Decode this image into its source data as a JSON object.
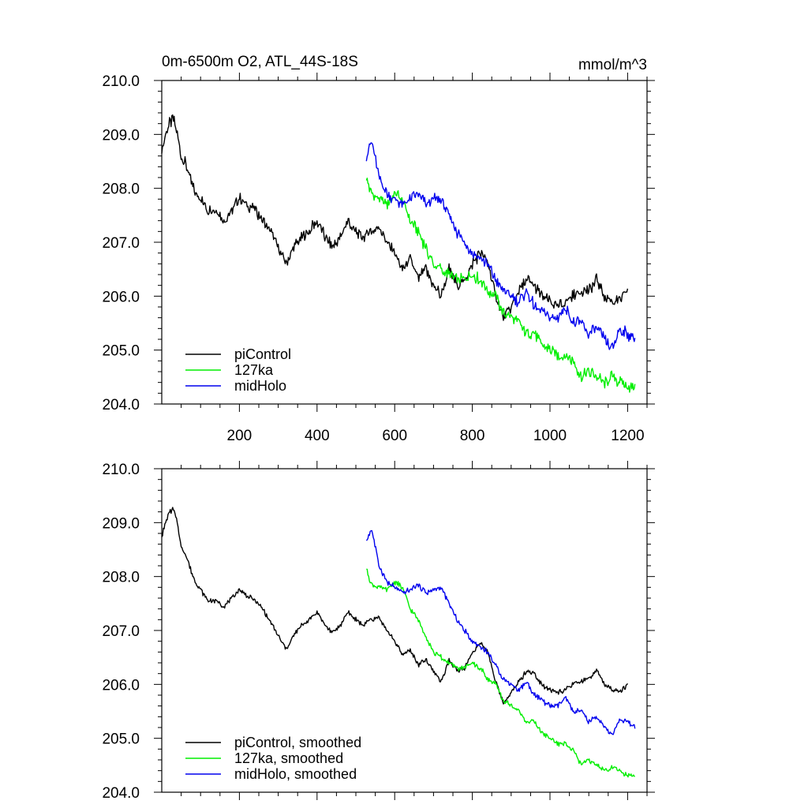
{
  "chart_data": [
    {
      "type": "line",
      "title": "0m-6500m O2, ATL_44S-18S",
      "units": "mmol/m^3",
      "xlim": [
        0,
        1250
      ],
      "ylim": [
        204.0,
        210.0
      ],
      "xticks": [
        200,
        400,
        600,
        800,
        1000,
        1200
      ],
      "xtick_labels": [
        "200",
        "400",
        "600",
        "800",
        "1000",
        "1200"
      ],
      "yticks": [
        204,
        205,
        206,
        207,
        208,
        209,
        210
      ],
      "ytick_labels": [
        "204.0",
        "205.0",
        "206.0",
        "207.0",
        "208.0",
        "209.0",
        "210.0"
      ],
      "legend_position": "bottom-left",
      "series": [
        {
          "name": "piControl",
          "color": "#000000",
          "x": [
            0,
            10,
            20,
            30,
            40,
            50,
            60,
            80,
            100,
            120,
            140,
            160,
            180,
            200,
            220,
            240,
            260,
            280,
            300,
            320,
            340,
            360,
            380,
            400,
            420,
            440,
            460,
            480,
            500,
            520,
            540,
            560,
            580,
            600,
            620,
            640,
            660,
            680,
            700,
            720,
            740,
            760,
            780,
            800,
            820,
            840,
            860,
            880,
            900,
            920,
            940,
            960,
            980,
            1000,
            1020,
            1040,
            1060,
            1080,
            1100,
            1120,
            1140,
            1160,
            1180,
            1200
          ],
          "y": [
            208.7,
            209.0,
            209.2,
            209.3,
            209.0,
            208.6,
            208.5,
            208.0,
            207.8,
            207.6,
            207.6,
            207.4,
            207.6,
            207.8,
            207.7,
            207.6,
            207.4,
            207.2,
            206.9,
            206.6,
            206.9,
            207.1,
            207.2,
            207.4,
            207.1,
            206.9,
            207.1,
            207.4,
            207.2,
            207.1,
            207.2,
            207.3,
            207.0,
            206.8,
            206.5,
            206.7,
            206.3,
            206.5,
            206.2,
            206.0,
            206.5,
            206.2,
            206.3,
            206.6,
            206.8,
            206.6,
            206.0,
            205.6,
            205.8,
            206.1,
            206.3,
            206.2,
            206.0,
            205.9,
            205.8,
            205.9,
            206.0,
            206.1,
            206.1,
            206.3,
            206.0,
            205.9,
            205.9,
            206.1
          ]
        },
        {
          "name": "127ka",
          "color": "#00ee00",
          "x": [
            527,
            540,
            560,
            580,
            600,
            620,
            640,
            660,
            680,
            700,
            720,
            740,
            760,
            780,
            800,
            820,
            840,
            860,
            880,
            900,
            920,
            940,
            960,
            980,
            1000,
            1020,
            1040,
            1060,
            1080,
            1100,
            1120,
            1140,
            1160,
            1180,
            1200,
            1220
          ],
          "y": [
            208.2,
            207.9,
            207.8,
            207.7,
            207.9,
            207.8,
            207.4,
            207.2,
            206.9,
            206.6,
            206.5,
            206.4,
            206.3,
            206.3,
            206.4,
            206.3,
            206.1,
            206.0,
            205.7,
            205.6,
            205.5,
            205.3,
            205.3,
            205.1,
            205.0,
            204.9,
            204.9,
            204.8,
            204.5,
            204.6,
            204.5,
            204.4,
            204.5,
            204.4,
            204.3,
            204.3
          ]
        },
        {
          "name": "midHolo",
          "color": "#0000ee",
          "x": [
            527,
            540,
            560,
            580,
            600,
            620,
            640,
            660,
            680,
            700,
            720,
            740,
            760,
            780,
            800,
            820,
            840,
            860,
            880,
            900,
            920,
            940,
            960,
            980,
            1000,
            1020,
            1040,
            1060,
            1080,
            1100,
            1120,
            1140,
            1160,
            1180,
            1200,
            1220
          ],
          "y": [
            208.6,
            208.9,
            208.2,
            207.9,
            207.8,
            207.7,
            207.8,
            207.9,
            207.7,
            207.8,
            207.8,
            207.5,
            207.2,
            207.0,
            206.8,
            206.7,
            206.6,
            206.3,
            206.1,
            206.0,
            205.9,
            206.1,
            205.8,
            205.7,
            205.6,
            205.6,
            205.8,
            205.5,
            205.5,
            205.3,
            205.4,
            205.2,
            205.0,
            205.4,
            205.3,
            205.2
          ]
        }
      ]
    },
    {
      "type": "line",
      "title": "",
      "units": "",
      "xlim": [
        0,
        1250
      ],
      "ylim": [
        204.0,
        210.0
      ],
      "xticks": [
        200,
        400,
        600,
        800,
        1000,
        1200
      ],
      "xtick_labels": [],
      "yticks": [
        204,
        205,
        206,
        207,
        208,
        209,
        210
      ],
      "ytick_labels": [
        "204.0",
        "205.0",
        "206.0",
        "207.0",
        "208.0",
        "209.0",
        "210.0"
      ],
      "legend_position": "bottom-left",
      "series": [
        {
          "name": "piControl, smoothed",
          "color": "#000000",
          "x": [
            0,
            10,
            20,
            30,
            40,
            50,
            60,
            80,
            100,
            120,
            140,
            160,
            180,
            200,
            220,
            240,
            260,
            280,
            300,
            320,
            340,
            360,
            380,
            400,
            420,
            440,
            460,
            480,
            500,
            520,
            540,
            560,
            580,
            600,
            620,
            640,
            660,
            680,
            700,
            720,
            740,
            760,
            780,
            800,
            820,
            840,
            860,
            880,
            900,
            920,
            940,
            960,
            980,
            1000,
            1020,
            1040,
            1060,
            1080,
            1100,
            1120,
            1140,
            1160,
            1180,
            1200
          ],
          "y": [
            208.75,
            209.0,
            209.2,
            209.25,
            209.0,
            208.55,
            208.45,
            208.0,
            207.75,
            207.55,
            207.55,
            207.45,
            207.6,
            207.75,
            207.65,
            207.55,
            207.4,
            207.15,
            206.9,
            206.65,
            206.9,
            207.1,
            207.2,
            207.35,
            207.1,
            206.95,
            207.1,
            207.35,
            207.2,
            207.1,
            207.2,
            207.25,
            207.0,
            206.8,
            206.55,
            206.65,
            206.35,
            206.45,
            206.25,
            206.05,
            206.45,
            206.25,
            206.3,
            206.6,
            206.75,
            206.6,
            206.05,
            205.65,
            205.85,
            206.05,
            206.25,
            206.2,
            206.0,
            205.9,
            205.85,
            205.9,
            206.0,
            206.05,
            206.1,
            206.25,
            206.0,
            205.9,
            205.85,
            206.0
          ]
        },
        {
          "name": "127ka, smoothed",
          "color": "#00ee00",
          "x": [
            527,
            540,
            560,
            580,
            600,
            620,
            640,
            660,
            680,
            700,
            720,
            740,
            760,
            780,
            800,
            820,
            840,
            860,
            880,
            900,
            920,
            940,
            960,
            980,
            1000,
            1020,
            1040,
            1060,
            1080,
            1100,
            1120,
            1140,
            1160,
            1180,
            1200,
            1220
          ],
          "y": [
            208.15,
            207.85,
            207.8,
            207.75,
            207.9,
            207.8,
            207.4,
            207.2,
            206.9,
            206.6,
            206.5,
            206.4,
            206.3,
            206.3,
            206.4,
            206.3,
            206.1,
            206.0,
            205.7,
            205.6,
            205.5,
            205.3,
            205.3,
            205.1,
            205.0,
            204.9,
            204.9,
            204.8,
            204.5,
            204.6,
            204.5,
            204.4,
            204.45,
            204.4,
            204.3,
            204.3
          ]
        },
        {
          "name": "midHolo, smoothed",
          "color": "#0000ee",
          "x": [
            527,
            540,
            560,
            580,
            600,
            620,
            640,
            660,
            680,
            700,
            720,
            740,
            760,
            780,
            800,
            820,
            840,
            860,
            880,
            900,
            920,
            940,
            960,
            980,
            1000,
            1020,
            1040,
            1060,
            1080,
            1100,
            1120,
            1140,
            1160,
            1180,
            1200,
            1220
          ],
          "y": [
            208.65,
            208.9,
            208.2,
            207.9,
            207.8,
            207.7,
            207.75,
            207.85,
            207.7,
            207.75,
            207.8,
            207.5,
            207.2,
            207.0,
            206.8,
            206.7,
            206.6,
            206.35,
            206.1,
            206.0,
            205.9,
            206.05,
            205.8,
            205.7,
            205.6,
            205.6,
            205.75,
            205.5,
            205.5,
            205.3,
            205.4,
            205.2,
            205.05,
            205.35,
            205.3,
            205.2
          ]
        }
      ]
    }
  ]
}
